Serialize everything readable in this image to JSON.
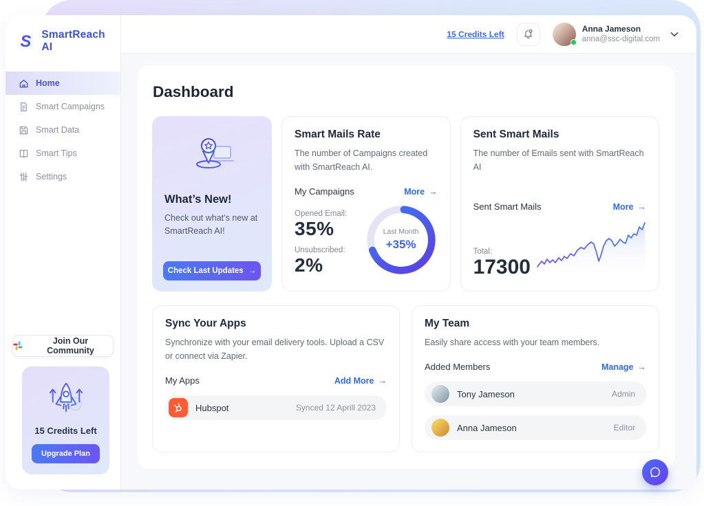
{
  "header": {
    "credits_link": "15 Credits Left",
    "user": {
      "name": "Anna Jameson",
      "email": "anna@ssc-digital.com"
    }
  },
  "sidebar": {
    "brand": "SmartReach AI",
    "items": [
      {
        "label": "Home",
        "active": true
      },
      {
        "label": "Smart Campaigns",
        "active": false
      },
      {
        "label": "Smart Data",
        "active": false
      },
      {
        "label": "Smart Tips",
        "active": false
      },
      {
        "label": "Settings",
        "active": false
      }
    ],
    "community_button": "Join Our Community",
    "credits_card": {
      "title": "15 Credits Left",
      "button": "Upgrade Plan"
    }
  },
  "page": {
    "title": "Dashboard"
  },
  "whats_new": {
    "title": "What’s New!",
    "body": "Check out what’s new at SmartReach AI!",
    "button": "Check Last Updates"
  },
  "smart_mails_rate": {
    "title": "Smart Mails Rate",
    "description": "The number of Campaigns created with SmartReach AI.",
    "section_label": "My Campaigns",
    "more_label": "More",
    "opened_label": "Opened Email:",
    "opened_value": "35%",
    "unsubscribed_label": "Unsubscribed:",
    "unsubscribed_value": "2%",
    "donut": {
      "center_label": "Last Month",
      "center_value": "+35%",
      "percent": 68
    }
  },
  "sent_smart_mails": {
    "title": "Sent Smart Mails",
    "description": "The number of Emails sent with SmartReach AI",
    "section_label": "Sent Smart Mails",
    "more_label": "More",
    "total_label": "Total:",
    "total_value": "17300",
    "sparkline": [
      [
        2,
        66
      ],
      [
        8,
        58
      ],
      [
        12,
        62
      ],
      [
        16,
        55
      ],
      [
        20,
        60
      ],
      [
        24,
        56
      ],
      [
        28,
        60
      ],
      [
        33,
        53
      ],
      [
        37,
        57
      ],
      [
        41,
        51
      ],
      [
        45,
        54
      ],
      [
        50,
        47
      ],
      [
        55,
        50
      ],
      [
        60,
        42
      ],
      [
        65,
        38
      ],
      [
        70,
        40
      ],
      [
        75,
        34
      ],
      [
        80,
        30
      ],
      [
        84,
        33
      ],
      [
        88,
        46
      ],
      [
        91,
        58
      ],
      [
        94,
        50
      ],
      [
        98,
        36
      ],
      [
        102,
        28
      ],
      [
        106,
        25
      ],
      [
        110,
        28
      ],
      [
        114,
        36
      ],
      [
        118,
        32
      ],
      [
        122,
        26
      ],
      [
        126,
        30
      ],
      [
        130,
        32
      ],
      [
        134,
        20
      ],
      [
        138,
        24
      ],
      [
        142,
        18
      ],
      [
        146,
        20
      ],
      [
        150,
        8
      ],
      [
        154,
        12
      ],
      [
        158,
        2
      ]
    ]
  },
  "sync_apps": {
    "title": "Sync Your Apps",
    "description": "Synchronize with your email delivery tools. Upload a CSV or connect via Zapier.",
    "section_label": "My Apps",
    "more_label": "Add More",
    "apps": [
      {
        "name": "Hubspot",
        "synced": "Synced 12 Aprill 2023"
      }
    ]
  },
  "my_team": {
    "title": "My Team",
    "description": "Easily share access with your team members.",
    "section_label": "Added Members",
    "more_label": "Manage",
    "members": [
      {
        "name": "Tony Jameson",
        "role": "Admin"
      },
      {
        "name": "Anna Jameson",
        "role": "Editor"
      }
    ]
  },
  "colors": {
    "accent_blue": "#2F6BEC",
    "accent_indigo": "#5B43E6",
    "link_blue": "#3D6BE8",
    "hubspot_orange": "#FF5C35",
    "success_green": "#22C55E"
  }
}
